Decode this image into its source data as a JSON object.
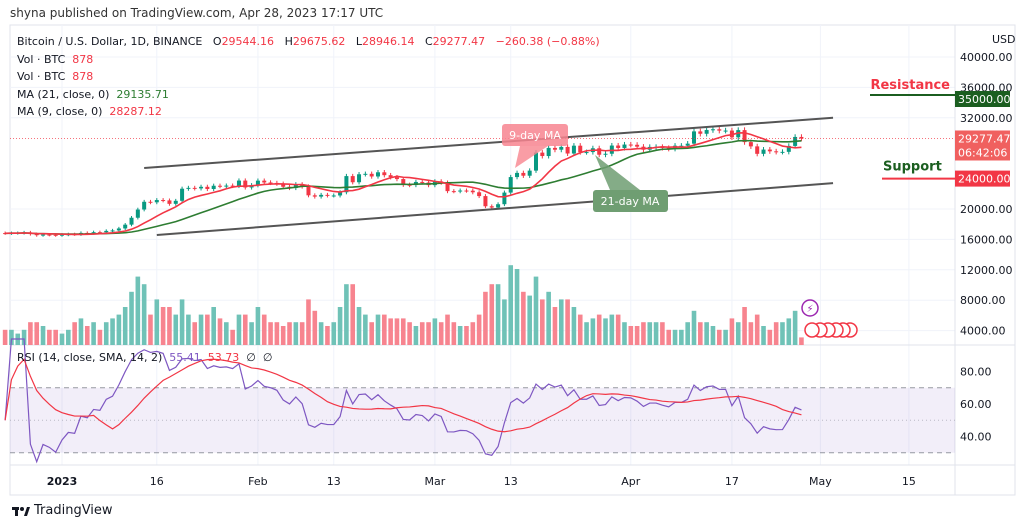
{
  "header": {
    "published": "shyna published on TradingView.com, Apr 28, 2023 17:17 UTC"
  },
  "legend": {
    "symbol": "Bitcoin / U.S. Dollar, 1D, BINANCE",
    "open_label": "O",
    "open": "29544.16",
    "high_label": "H",
    "high": "29675.62",
    "low_label": "L",
    "low": "28946.14",
    "close_label": "C",
    "close": "29277.47",
    "change": "−260.38 (−0.88%)",
    "vol1_label": "Vol · BTC",
    "vol1": "878",
    "vol2_label": "Vol · BTC",
    "vol2": "878",
    "ma21_label": "MA (21, close, 0)",
    "ma21": "29135.71",
    "ma9_label": "MA (9, close, 0)",
    "ma9": "28287.12"
  },
  "rsi_legend": {
    "label": "RSI (14, close, SMA, 14, 2)",
    "rsi": "55.41",
    "sma": "53.73",
    "x1": "∅",
    "x2": "∅"
  },
  "currency": "USD",
  "footer": {
    "brand": "TradingView"
  },
  "colors": {
    "up": "#089981",
    "down": "#f23645",
    "ma9": "#f23645",
    "ma21": "#2e7d32",
    "rsi": "#7e57c2",
    "rsi_sma": "#f23645",
    "volume_up": "#6fc2b7",
    "volume_down": "#f7848f"
  },
  "chart_data": {
    "type": "candlestick",
    "start_date": "2022-12-23",
    "closes": [
      16800,
      16830,
      16840,
      16920,
      16700,
      16550,
      16630,
      16600,
      16540,
      16620,
      16680,
      16670,
      16850,
      16830,
      16950,
      16940,
      17120,
      17180,
      17440,
      17940,
      18850,
      19930,
      20950,
      20880,
      21180,
      21130,
      20680,
      21080,
      22670,
      22780,
      22710,
      22920,
      22630,
      23060,
      23010,
      23080,
      23030,
      23740,
      22830,
      23130,
      23730,
      23490,
      23430,
      23330,
      22930,
      22760,
      23250,
      22960,
      21800,
      21630,
      21860,
      21780,
      21780,
      22200,
      24330,
      23520,
      24570,
      24630,
      24280,
      24830,
      24450,
      24180,
      23940,
      23190,
      23150,
      23560,
      23490,
      23140,
      23630,
      23470,
      22350,
      22340,
      22430,
      22410,
      22200,
      21700,
      20360,
      20190,
      20630,
      22160,
      24200,
      24750,
      24380,
      25050,
      27420,
      26970,
      28040,
      27800,
      28170,
      27300,
      28330,
      27480,
      27490,
      27990,
      27140,
      27270,
      28350,
      28030,
      28480,
      28450,
      28200,
      27800,
      28170,
      28170,
      28030,
      27920,
      28330,
      28330,
      28600,
      30210,
      29900,
      30390,
      30490,
      30310,
      30320,
      29430,
      30380,
      28800,
      28240,
      27260,
      27820,
      27590,
      27510,
      27520,
      28300,
      29480,
      29277.47
    ],
    "volume_relative": [
      2,
      2,
      1.5,
      2,
      3,
      3,
      2.5,
      2,
      2,
      1.5,
      2,
      3,
      3.5,
      2.5,
      3,
      2,
      3,
      3.5,
      4,
      5,
      7,
      9,
      8,
      4,
      6,
      5,
      5,
      4,
      6,
      4,
      3,
      4,
      4,
      5,
      3.5,
      3,
      2,
      4,
      4,
      3,
      5,
      4,
      3,
      3,
      2.5,
      3,
      3,
      3,
      6,
      4.5,
      3,
      2.5,
      3,
      5,
      8,
      8,
      5,
      4,
      3,
      4,
      4,
      3.5,
      3.5,
      3.5,
      3,
      2.5,
      3,
      3,
      3.5,
      3,
      4,
      3,
      2.5,
      2.5,
      3,
      4,
      7,
      8,
      8,
      6,
      10.5,
      10,
      7,
      6.5,
      9,
      6,
      7,
      5,
      6,
      6,
      5,
      4,
      3,
      3.5,
      4,
      3.5,
      4,
      4,
      3,
      2.5,
      2.5,
      3,
      3,
      3,
      3,
      2,
      2,
      2,
      3,
      4.5,
      3,
      3,
      2.5,
      2,
      2,
      3.5,
      3,
      5,
      3,
      4,
      2.5,
      2,
      3,
      3,
      3.5,
      4.5,
      1
    ],
    "price_axis": {
      "ticks": [
        "40000.00",
        "36000.00",
        "32000.00",
        "20000.00",
        "16000.00",
        "12000.00",
        "8000.00",
        "4000.00"
      ],
      "values": [
        40000,
        36000,
        32000,
        20000,
        16000,
        12000,
        8000,
        4000
      ]
    },
    "rsi_axis": {
      "ticks": [
        "80.00",
        "60.00",
        "40.00"
      ],
      "values": [
        80,
        60,
        40
      ],
      "bands": [
        70,
        30
      ]
    },
    "x_axis": {
      "ticks": [
        "2023",
        "16",
        "Feb",
        "13",
        "Mar",
        "13",
        "Apr",
        "17",
        "May",
        "15"
      ],
      "dates": [
        "2023-01-01",
        "2023-01-16",
        "2023-02-01",
        "2023-02-13",
        "2023-03-01",
        "2023-03-13",
        "2023-04-01",
        "2023-04-17",
        "2023-05-01",
        "2023-05-15"
      ]
    },
    "price_tags": {
      "resistance": "35000.00",
      "last": "29277.47",
      "countdown": "06:42:06",
      "support": "24000.00"
    },
    "levels": {
      "resistance": 35000,
      "support": 24000
    },
    "annotations": {
      "resistance": "Resistance",
      "support": "Support",
      "ma9": "9-day MA",
      "ma21": "21-day MA"
    },
    "trendlines": [
      {
        "from": [
          "2023-01-14",
          25400
        ],
        "to": [
          "2023-05-03",
          32000
        ]
      },
      {
        "from": [
          "2023-01-16",
          16580
        ],
        "to": [
          "2023-05-03",
          23400
        ]
      }
    ]
  }
}
